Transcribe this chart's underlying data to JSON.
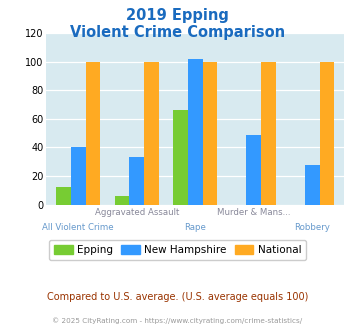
{
  "title_line1": "2019 Epping",
  "title_line2": "Violent Crime Comparison",
  "epping": [
    12,
    6,
    66,
    0,
    0
  ],
  "new_hampshire": [
    40,
    33,
    102,
    49,
    28
  ],
  "national": [
    100,
    100,
    100,
    100,
    100
  ],
  "color_epping": "#77cc33",
  "color_nh": "#3399ff",
  "color_national": "#ffaa22",
  "ylim": [
    0,
    120
  ],
  "yticks": [
    0,
    20,
    40,
    60,
    80,
    100,
    120
  ],
  "bg_color": "#d8eaf0",
  "title_color": "#1a6bbf",
  "top_labels": {
    "1": "Aggravated Assault",
    "3": "Murder & Mans..."
  },
  "bottom_labels": {
    "0": "All Violent Crime",
    "2": "Rape",
    "4": "Robbery"
  },
  "top_label_color": "#888899",
  "bottom_label_color": "#6699cc",
  "footer_text": "Compared to U.S. average. (U.S. average equals 100)",
  "footer_color": "#993300",
  "copyright_text": "© 2025 CityRating.com - https://www.cityrating.com/crime-statistics/",
  "copyright_color": "#999999",
  "legend_labels": [
    "Epping",
    "New Hampshire",
    "National"
  ],
  "bar_width": 0.25
}
